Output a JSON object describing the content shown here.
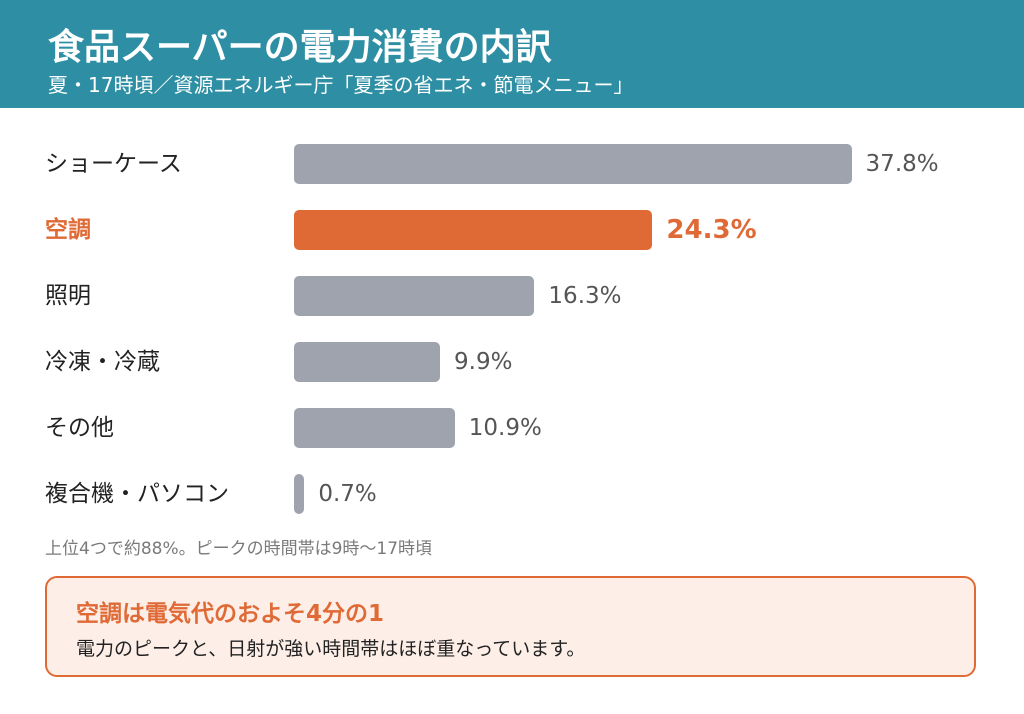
{
  "header": {
    "title": "食品スーパーの電力消費の内訳",
    "subtitle": "夏・17時頃／資源エネルギー庁「夏季の省エネ・節電メニュー」"
  },
  "chart_data": {
    "type": "bar",
    "orientation": "horizontal",
    "categories": [
      "ショーケース",
      "空調",
      "照明",
      "冷凍・冷蔵",
      "その他",
      "複合機・パソコン"
    ],
    "values": [
      37.8,
      24.3,
      16.3,
      9.9,
      10.9,
      0.7
    ],
    "value_labels": [
      "37.8%",
      "24.3%",
      "16.3%",
      "9.9%",
      "10.9%",
      "0.7%"
    ],
    "highlight": "空調",
    "unit": "%",
    "colors": {
      "bar": "#9ea3ad",
      "highlight": "#e06a35",
      "header": "#2e8fa4"
    },
    "legend": "none",
    "grid": false
  },
  "note": "上位4つで約88%。ピークの時間帯は9時〜17時頃",
  "callout": {
    "title": "空調は電気代のおよそ4分の1",
    "body": "電力のピークと、日射が強い時間帯はほぼ重なっています。"
  }
}
